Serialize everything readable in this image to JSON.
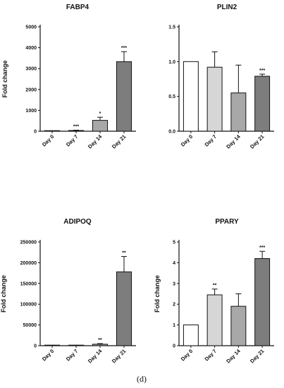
{
  "caption": "(d)",
  "chart_data": [
    {
      "type": "bar",
      "title": "FABP4",
      "ylabel": "Fold change",
      "categories": [
        "Day 0",
        "Day 7",
        "Day 14",
        "Day 21"
      ],
      "values": [
        1,
        35,
        520,
        3330
      ],
      "errors": [
        0,
        15,
        150,
        480
      ],
      "significance": [
        "",
        "***",
        "*",
        "***"
      ],
      "ylim": [
        0,
        5000
      ],
      "yticks": [
        0,
        1000,
        2000,
        3000,
        4000,
        5000
      ],
      "colors": [
        "#ffffff",
        "#d6d6d6",
        "#a8a8a8",
        "#7d7d7d"
      ]
    },
    {
      "type": "bar",
      "title": "PLIN2",
      "ylabel": "",
      "categories": [
        "Day 0",
        "Day 7",
        "Day 14",
        "Day 21"
      ],
      "values": [
        1.0,
        0.92,
        0.55,
        0.79
      ],
      "errors": [
        0,
        0.22,
        0.4,
        0.03
      ],
      "significance": [
        "",
        "",
        "",
        "***"
      ],
      "ylim": [
        0,
        1.5
      ],
      "yticks": [
        "0.0",
        "0.5",
        "1.0",
        "1.5"
      ],
      "colors": [
        "#ffffff",
        "#d6d6d6",
        "#a8a8a8",
        "#7d7d7d"
      ]
    },
    {
      "type": "bar",
      "title": "ADIPOQ",
      "ylabel": "Fold change",
      "categories": [
        "Day 0",
        "Day 7",
        "Day 14",
        "Day 21"
      ],
      "values": [
        1,
        500,
        3500,
        178000
      ],
      "errors": [
        0,
        200,
        1500,
        37000
      ],
      "significance": [
        "",
        "",
        "**",
        "**"
      ],
      "ylim": [
        0,
        250000
      ],
      "yticks": [
        0,
        50000,
        100000,
        150000,
        200000,
        250000
      ],
      "colors": [
        "#ffffff",
        "#d6d6d6",
        "#a8a8a8",
        "#7d7d7d"
      ]
    },
    {
      "type": "bar",
      "title": "PPARY",
      "ylabel": "Fold change",
      "categories": [
        "Day 0",
        "Day 7",
        "Day 14",
        "Day 21"
      ],
      "values": [
        1.0,
        2.45,
        1.9,
        4.2
      ],
      "errors": [
        0,
        0.28,
        0.6,
        0.35
      ],
      "significance": [
        "",
        "**",
        "",
        "***"
      ],
      "ylim": [
        0,
        5
      ],
      "yticks": [
        0,
        1,
        2,
        3,
        4,
        5
      ],
      "colors": [
        "#ffffff",
        "#d6d6d6",
        "#a8a8a8",
        "#7d7d7d"
      ]
    }
  ]
}
